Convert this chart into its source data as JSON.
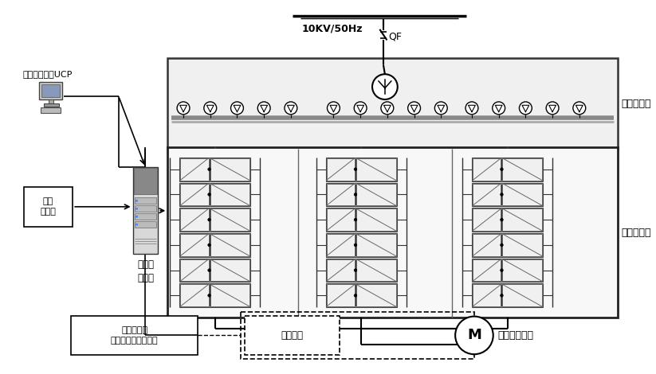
{
  "bg_color": "#ffffff",
  "title_10kv": "10KV/50Hz",
  "label_qf": "QF",
  "label_transformer": "隔离变压器",
  "label_vfd": "中压变频器",
  "label_controller": "变频器\n控制柜",
  "label_lowv": "低压\n配电柜",
  "label_ucp": "机组控制系统UCP",
  "label_control_panel": "现场控制盘\n（机旁防爆控制筱）",
  "label_aux": "辅助系统",
  "label_motor": "防爆异步电机",
  "label_motor_m": "M",
  "n_delta_per_group": 5,
  "n_cell_rows": 6,
  "n_cell_cols": 3
}
